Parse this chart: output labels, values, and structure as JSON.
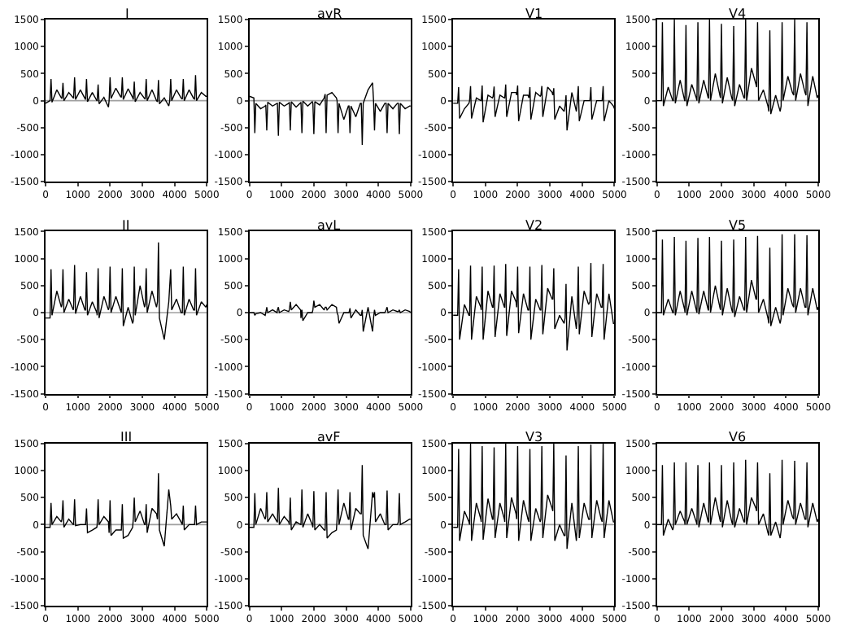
{
  "chart_data": [
    {
      "type": "line",
      "title": "I",
      "color": "#000000",
      "xlim": [
        0,
        5000
      ],
      "xticks": [
        0,
        1000,
        2000,
        3000,
        4000,
        5000
      ],
      "ylim": [
        -1500,
        1500
      ],
      "yticks": [
        -1500,
        -1000,
        -500,
        0,
        500,
        1000,
        1500
      ],
      "grid": false,
      "legend": false,
      "ref_lines": [
        {
          "axis": "y",
          "value": 0,
          "color": "#a0a0a0"
        }
      ],
      "x": [
        0,
        140,
        170,
        200,
        350,
        490,
        510,
        540,
        570,
        720,
        860,
        870,
        900,
        930,
        1080,
        1220,
        1240,
        1270,
        1300,
        1450,
        1590,
        1600,
        1630,
        1660,
        1810,
        1950,
        1970,
        2000,
        2030,
        2180,
        2320,
        2350,
        2380,
        2410,
        2560,
        2700,
        2720,
        2750,
        2780,
        2930,
        3070,
        3090,
        3120,
        3150,
        3300,
        3440,
        3470,
        3500,
        3530,
        3680,
        3820,
        3850,
        3880,
        3910,
        4060,
        4200,
        4240,
        4270,
        4300,
        4450,
        4590,
        4620,
        4650,
        4680,
        4830,
        4970,
        5000
      ],
      "values": [
        -50,
        0,
        400,
        -30,
        200,
        50,
        40,
        330,
        0,
        150,
        50,
        50,
        430,
        20,
        200,
        40,
        20,
        400,
        -20,
        150,
        0,
        0,
        300,
        -60,
        60,
        -120,
        0,
        430,
        40,
        230,
        80,
        60,
        430,
        20,
        220,
        60,
        20,
        350,
        -20,
        150,
        40,
        30,
        400,
        0,
        200,
        0,
        -20,
        380,
        -60,
        50,
        -100,
        0,
        400,
        0,
        200,
        50,
        30,
        400,
        0,
        200,
        40,
        30,
        470,
        0,
        150,
        80,
        80
      ]
    },
    {
      "type": "line",
      "title": "avR",
      "color": "#000000",
      "xlim": [
        0,
        5000
      ],
      "xticks": [
        0,
        1000,
        2000,
        3000,
        4000,
        5000
      ],
      "ylim": [
        -1500,
        1500
      ],
      "yticks": [
        -1500,
        -1000,
        -500,
        0,
        500,
        1000,
        1500
      ],
      "grid": false,
      "legend": false,
      "ref_lines": [
        {
          "axis": "y",
          "value": 0,
          "color": "#a0a0a0"
        }
      ],
      "x": [
        0,
        140,
        170,
        200,
        350,
        490,
        510,
        540,
        570,
        720,
        860,
        870,
        900,
        930,
        1080,
        1220,
        1240,
        1270,
        1300,
        1450,
        1590,
        1600,
        1630,
        1660,
        1810,
        1950,
        1970,
        2000,
        2030,
        2180,
        2320,
        2350,
        2380,
        2410,
        2560,
        2700,
        2720,
        2750,
        2780,
        2930,
        3070,
        3090,
        3120,
        3150,
        3300,
        3440,
        3470,
        3500,
        3530,
        3680,
        3820,
        3850,
        3880,
        3910,
        4060,
        4200,
        4240,
        4270,
        4300,
        4450,
        4590,
        4620,
        4650,
        4680,
        4830,
        4970,
        5000
      ],
      "values": [
        80,
        50,
        -600,
        -50,
        -150,
        -100,
        -80,
        -550,
        -30,
        -100,
        -50,
        -50,
        -650,
        -30,
        -100,
        -50,
        -30,
        -550,
        -20,
        -120,
        -40,
        -30,
        -600,
        -10,
        -100,
        -20,
        -50,
        -620,
        -20,
        -80,
        50,
        120,
        -600,
        100,
        150,
        50,
        0,
        -600,
        -50,
        -350,
        -100,
        -100,
        -600,
        -100,
        -300,
        -50,
        -50,
        -820,
        -50,
        200,
        330,
        0,
        -550,
        -50,
        -200,
        -50,
        -50,
        -600,
        -50,
        -150,
        -50,
        -50,
        -620,
        -50,
        -150,
        -100,
        -100
      ]
    },
    {
      "type": "line",
      "title": "V1",
      "color": "#000000",
      "xlim": [
        0,
        5000
      ],
      "xticks": [
        0,
        1000,
        2000,
        3000,
        4000,
        5000
      ],
      "ylim": [
        -1500,
        1500
      ],
      "yticks": [
        -1500,
        -1000,
        -500,
        0,
        500,
        1000,
        1500
      ],
      "grid": false,
      "legend": false,
      "ref_lines": [
        {
          "axis": "y",
          "value": 0,
          "color": "#a0a0a0"
        }
      ],
      "x": [
        0,
        140,
        170,
        200,
        350,
        490,
        510,
        540,
        570,
        720,
        860,
        870,
        900,
        930,
        1080,
        1220,
        1240,
        1270,
        1300,
        1450,
        1590,
        1600,
        1630,
        1660,
        1810,
        1950,
        1970,
        2000,
        2030,
        2180,
        2320,
        2350,
        2380,
        2410,
        2560,
        2700,
        2720,
        2750,
        2780,
        2930,
        3070,
        3090,
        3120,
        3150,
        3300,
        3440,
        3470,
        3500,
        3530,
        3680,
        3820,
        3850,
        3880,
        3910,
        4060,
        4200,
        4240,
        4270,
        4300,
        4450,
        4590,
        4620,
        4650,
        4680,
        4830,
        4970,
        5000
      ],
      "values": [
        -50,
        -50,
        250,
        -330,
        -150,
        -50,
        0,
        270,
        -330,
        50,
        0,
        0,
        280,
        -400,
        100,
        50,
        80,
        260,
        -300,
        100,
        50,
        50,
        300,
        -300,
        150,
        150,
        100,
        280,
        -380,
        100,
        100,
        50,
        250,
        -350,
        150,
        80,
        100,
        270,
        -300,
        250,
        150,
        100,
        230,
        -350,
        -100,
        -200,
        -100,
        100,
        -550,
        150,
        -200,
        0,
        270,
        -380,
        0,
        0,
        0,
        250,
        -350,
        0,
        0,
        0,
        270,
        -380,
        0,
        -100,
        -150
      ]
    },
    {
      "type": "line",
      "title": "V4",
      "color": "#000000",
      "xlim": [
        0,
        5000
      ],
      "xticks": [
        0,
        1000,
        2000,
        3000,
        4000,
        5000
      ],
      "ylim": [
        -1500,
        1500
      ],
      "yticks": [
        -1500,
        -1000,
        -500,
        0,
        500,
        1000,
        1500
      ],
      "grid": false,
      "legend": false,
      "ref_lines": [
        {
          "axis": "y",
          "value": 0,
          "color": "#a0a0a0"
        }
      ],
      "x": [
        0,
        140,
        170,
        200,
        350,
        490,
        510,
        540,
        570,
        720,
        860,
        870,
        900,
        930,
        1080,
        1220,
        1240,
        1270,
        1300,
        1450,
        1590,
        1600,
        1630,
        1660,
        1810,
        1950,
        1970,
        2000,
        2030,
        2180,
        2320,
        2350,
        2380,
        2410,
        2560,
        2700,
        2720,
        2750,
        2780,
        2930,
        3070,
        3090,
        3120,
        3150,
        3300,
        3440,
        3470,
        3500,
        3530,
        3680,
        3820,
        3850,
        3880,
        3910,
        4060,
        4200,
        4240,
        4270,
        4300,
        4450,
        4590,
        4620,
        4650,
        4680,
        4830,
        4970,
        5000
      ],
      "values": [
        0,
        0,
        1450,
        -100,
        250,
        0,
        0,
        1500,
        -50,
        380,
        0,
        0,
        1400,
        -100,
        300,
        50,
        0,
        1450,
        -50,
        380,
        50,
        50,
        1500,
        0,
        500,
        100,
        50,
        1420,
        -50,
        430,
        50,
        0,
        1380,
        -100,
        300,
        50,
        50,
        1500,
        0,
        600,
        300,
        250,
        1450,
        0,
        200,
        -100,
        -200,
        1300,
        -250,
        100,
        -200,
        -100,
        1450,
        0,
        450,
        150,
        100,
        1500,
        0,
        500,
        150,
        100,
        1450,
        -100,
        450,
        50,
        100
      ]
    },
    {
      "type": "line",
      "title": "II",
      "color": "#000000",
      "xlim": [
        0,
        5000
      ],
      "xticks": [
        0,
        1000,
        2000,
        3000,
        4000,
        5000
      ],
      "ylim": [
        -1500,
        1500
      ],
      "yticks": [
        -1500,
        -1000,
        -500,
        0,
        500,
        1000,
        1500
      ],
      "grid": false,
      "legend": false,
      "ref_lines": [
        {
          "axis": "y",
          "value": 0,
          "color": "#a0a0a0"
        }
      ],
      "x": [
        0,
        140,
        170,
        200,
        350,
        490,
        510,
        540,
        570,
        720,
        860,
        870,
        900,
        930,
        1080,
        1220,
        1240,
        1270,
        1300,
        1450,
        1590,
        1600,
        1630,
        1660,
        1810,
        1950,
        1970,
        2000,
        2030,
        2180,
        2320,
        2350,
        2380,
        2410,
        2560,
        2700,
        2720,
        2750,
        2780,
        2930,
        3070,
        3090,
        3120,
        3150,
        3300,
        3440,
        3470,
        3500,
        3530,
        3680,
        3820,
        3850,
        3880,
        3910,
        4060,
        4200,
        4240,
        4270,
        4300,
        4450,
        4590,
        4620,
        4650,
        4680,
        4830,
        4970,
        5000
      ],
      "values": [
        -100,
        -100,
        800,
        -50,
        400,
        100,
        150,
        800,
        0,
        250,
        50,
        100,
        880,
        -20,
        300,
        50,
        50,
        750,
        -50,
        200,
        0,
        -50,
        820,
        -100,
        300,
        50,
        100,
        850,
        0,
        300,
        50,
        0,
        820,
        -250,
        100,
        -200,
        -150,
        850,
        -50,
        500,
        100,
        150,
        820,
        0,
        400,
        100,
        200,
        1300,
        -100,
        -500,
        200,
        500,
        800,
        50,
        250,
        0,
        0,
        850,
        -50,
        250,
        50,
        50,
        820,
        -50,
        200,
        100,
        150
      ]
    },
    {
      "type": "line",
      "title": "avL",
      "color": "#000000",
      "xlim": [
        0,
        5000
      ],
      "xticks": [
        0,
        1000,
        2000,
        3000,
        4000,
        5000
      ],
      "ylim": [
        -1500,
        1500
      ],
      "yticks": [
        -1500,
        -1000,
        -500,
        0,
        500,
        1000,
        1500
      ],
      "grid": false,
      "legend": false,
      "ref_lines": [
        {
          "axis": "y",
          "value": 0,
          "color": "#a0a0a0"
        }
      ],
      "x": [
        0,
        140,
        170,
        200,
        350,
        490,
        510,
        540,
        570,
        720,
        860,
        870,
        900,
        930,
        1080,
        1220,
        1240,
        1270,
        1300,
        1450,
        1590,
        1600,
        1630,
        1660,
        1810,
        1950,
        1970,
        2000,
        2030,
        2180,
        2320,
        2350,
        2380,
        2410,
        2560,
        2700,
        2720,
        2750,
        2780,
        2930,
        3070,
        3090,
        3120,
        3150,
        3300,
        3440,
        3470,
        3500,
        3530,
        3680,
        3820,
        3850,
        3880,
        3910,
        4060,
        4200,
        4240,
        4270,
        4300,
        4450,
        4590,
        4620,
        4650,
        4680,
        4830,
        4970,
        5000
      ],
      "values": [
        0,
        0,
        -50,
        -20,
        0,
        -50,
        0,
        100,
        0,
        50,
        0,
        50,
        100,
        0,
        50,
        20,
        50,
        200,
        50,
        150,
        50,
        -100,
        50,
        -150,
        0,
        0,
        50,
        220,
        100,
        150,
        50,
        100,
        100,
        50,
        150,
        100,
        0,
        -50,
        -200,
        0,
        0,
        0,
        80,
        -100,
        50,
        -50,
        -50,
        50,
        -350,
        100,
        -350,
        -100,
        50,
        -50,
        0,
        0,
        50,
        100,
        0,
        50,
        20,
        20,
        50,
        0,
        50,
        20,
        0
      ]
    },
    {
      "type": "line",
      "title": "V2",
      "color": "#000000",
      "xlim": [
        0,
        5000
      ],
      "xticks": [
        0,
        1000,
        2000,
        3000,
        4000,
        5000
      ],
      "ylim": [
        -1500,
        1500
      ],
      "yticks": [
        -1500,
        -1000,
        -500,
        0,
        500,
        1000,
        1500
      ],
      "grid": false,
      "legend": false,
      "ref_lines": [
        {
          "axis": "y",
          "value": 0,
          "color": "#a0a0a0"
        }
      ],
      "x": [
        0,
        140,
        170,
        200,
        350,
        490,
        510,
        540,
        570,
        720,
        860,
        870,
        900,
        930,
        1080,
        1220,
        1240,
        1270,
        1300,
        1450,
        1590,
        1600,
        1630,
        1660,
        1810,
        1950,
        1970,
        2000,
        2030,
        2180,
        2320,
        2350,
        2380,
        2410,
        2560,
        2700,
        2720,
        2750,
        2780,
        2930,
        3070,
        3090,
        3120,
        3150,
        3300,
        3440,
        3470,
        3500,
        3530,
        3680,
        3820,
        3850,
        3880,
        3910,
        4060,
        4200,
        4240,
        4270,
        4300,
        4450,
        4590,
        4620,
        4650,
        4680,
        4830,
        4970,
        5000
      ],
      "values": [
        -50,
        -50,
        800,
        -500,
        150,
        -50,
        -50,
        870,
        -500,
        300,
        100,
        50,
        850,
        -500,
        400,
        100,
        100,
        870,
        -450,
        350,
        100,
        100,
        900,
        -430,
        400,
        200,
        100,
        850,
        -380,
        350,
        50,
        50,
        850,
        -500,
        250,
        50,
        50,
        880,
        -400,
        450,
        250,
        250,
        820,
        -300,
        -50,
        -200,
        -100,
        530,
        -700,
        300,
        -300,
        0,
        850,
        -400,
        400,
        150,
        200,
        920,
        -450,
        350,
        100,
        100,
        900,
        -500,
        350,
        -200,
        -200
      ]
    },
    {
      "type": "line",
      "title": "V5",
      "color": "#000000",
      "xlim": [
        0,
        5000
      ],
      "xticks": [
        0,
        1000,
        2000,
        3000,
        4000,
        5000
      ],
      "ylim": [
        -1500,
        1500
      ],
      "yticks": [
        -1500,
        -1000,
        -500,
        0,
        500,
        1000,
        1500
      ],
      "grid": false,
      "legend": false,
      "ref_lines": [
        {
          "axis": "y",
          "value": 0,
          "color": "#a0a0a0"
        }
      ],
      "x": [
        0,
        140,
        170,
        200,
        350,
        490,
        510,
        540,
        570,
        720,
        860,
        870,
        900,
        930,
        1080,
        1220,
        1240,
        1270,
        1300,
        1450,
        1590,
        1600,
        1630,
        1660,
        1810,
        1950,
        1970,
        2000,
        2030,
        2180,
        2320,
        2350,
        2380,
        2410,
        2560,
        2700,
        2720,
        2750,
        2780,
        2930,
        3070,
        3090,
        3120,
        3150,
        3300,
        3440,
        3470,
        3500,
        3530,
        3680,
        3820,
        3850,
        3880,
        3910,
        4060,
        4200,
        4240,
        4270,
        4300,
        4450,
        4590,
        4620,
        4650,
        4680,
        4830,
        4970,
        5000
      ],
      "values": [
        0,
        0,
        1350,
        -50,
        250,
        0,
        0,
        1400,
        -50,
        400,
        50,
        0,
        1330,
        -50,
        400,
        50,
        0,
        1380,
        -30,
        400,
        50,
        50,
        1400,
        0,
        500,
        100,
        50,
        1330,
        -50,
        450,
        50,
        0,
        1350,
        -80,
        300,
        50,
        50,
        1400,
        0,
        600,
        250,
        250,
        1420,
        0,
        250,
        -100,
        -200,
        1200,
        -250,
        100,
        -200,
        -100,
        1450,
        -50,
        450,
        150,
        100,
        1450,
        0,
        450,
        100,
        100,
        1430,
        -50,
        450,
        50,
        100
      ]
    },
    {
      "type": "line",
      "title": "III",
      "color": "#000000",
      "xlim": [
        0,
        5000
      ],
      "xticks": [
        0,
        1000,
        2000,
        3000,
        4000,
        5000
      ],
      "ylim": [
        -1500,
        1500
      ],
      "yticks": [
        -1500,
        -1000,
        -500,
        0,
        500,
        1000,
        1500
      ],
      "grid": false,
      "legend": false,
      "ref_lines": [
        {
          "axis": "y",
          "value": 0,
          "color": "#a0a0a0"
        }
      ],
      "x": [
        0,
        140,
        170,
        200,
        350,
        490,
        510,
        540,
        570,
        720,
        860,
        870,
        900,
        930,
        1080,
        1220,
        1240,
        1270,
        1300,
        1450,
        1590,
        1600,
        1630,
        1660,
        1810,
        1950,
        1970,
        2000,
        2030,
        2180,
        2320,
        2350,
        2380,
        2410,
        2560,
        2700,
        2720,
        2750,
        2780,
        2930,
        3070,
        3090,
        3120,
        3150,
        3300,
        3440,
        3470,
        3500,
        3530,
        3680,
        3820,
        3850,
        3880,
        3910,
        4060,
        4200,
        4240,
        4270,
        4300,
        4450,
        4590,
        4620,
        4650,
        4680,
        4830,
        4970,
        5000
      ],
      "values": [
        -50,
        -50,
        400,
        0,
        150,
        50,
        100,
        450,
        -50,
        100,
        0,
        0,
        470,
        -20,
        0,
        0,
        0,
        300,
        -150,
        -100,
        -50,
        0,
        470,
        0,
        150,
        50,
        -150,
        450,
        -200,
        -100,
        -100,
        -100,
        380,
        -250,
        -200,
        -50,
        100,
        500,
        50,
        250,
        0,
        0,
        380,
        -150,
        300,
        200,
        100,
        950,
        -100,
        -400,
        650,
        500,
        350,
        100,
        200,
        50,
        0,
        350,
        -100,
        0,
        0,
        0,
        350,
        0,
        50,
        50,
        50
      ]
    },
    {
      "type": "line",
      "title": "avF",
      "color": "#000000",
      "xlim": [
        0,
        5000
      ],
      "xticks": [
        0,
        1000,
        2000,
        3000,
        4000,
        5000
      ],
      "ylim": [
        -1500,
        1500
      ],
      "yticks": [
        -1500,
        -1000,
        -500,
        0,
        500,
        1000,
        1500
      ],
      "grid": false,
      "legend": false,
      "ref_lines": [
        {
          "axis": "y",
          "value": 0,
          "color": "#a0a0a0"
        }
      ],
      "x": [
        0,
        140,
        170,
        200,
        350,
        490,
        510,
        540,
        570,
        720,
        860,
        870,
        900,
        930,
        1080,
        1220,
        1240,
        1270,
        1300,
        1450,
        1590,
        1600,
        1630,
        1660,
        1810,
        1950,
        1970,
        2000,
        2030,
        2180,
        2320,
        2350,
        2380,
        2410,
        2560,
        2700,
        2720,
        2750,
        2780,
        2930,
        3070,
        3090,
        3120,
        3150,
        3300,
        3440,
        3470,
        3500,
        3530,
        3680,
        3820,
        3850,
        3880,
        3910,
        4060,
        4200,
        4240,
        4270,
        4300,
        4450,
        4590,
        4620,
        4650,
        4680,
        4830,
        4970,
        5000
      ],
      "values": [
        -50,
        -50,
        580,
        0,
        300,
        100,
        150,
        600,
        50,
        200,
        50,
        50,
        680,
        0,
        150,
        50,
        0,
        500,
        -100,
        50,
        0,
        0,
        650,
        -50,
        200,
        0,
        -50,
        620,
        -100,
        0,
        -100,
        -100,
        600,
        -250,
        -150,
        -100,
        100,
        650,
        0,
        400,
        100,
        100,
        600,
        -100,
        300,
        200,
        200,
        1100,
        -200,
        -450,
        600,
        500,
        600,
        50,
        200,
        0,
        0,
        630,
        -100,
        0,
        0,
        50,
        580,
        0,
        50,
        100,
        100
      ]
    },
    {
      "type": "line",
      "title": "V3",
      "color": "#000000",
      "xlim": [
        0,
        5000
      ],
      "xticks": [
        0,
        1000,
        2000,
        3000,
        4000,
        5000
      ],
      "ylim": [
        -1500,
        1500
      ],
      "yticks": [
        -1500,
        -1000,
        -500,
        0,
        500,
        1000,
        1500
      ],
      "grid": false,
      "legend": false,
      "ref_lines": [
        {
          "axis": "y",
          "value": 0,
          "color": "#a0a0a0"
        }
      ],
      "x": [
        0,
        140,
        170,
        200,
        350,
        490,
        510,
        540,
        570,
        720,
        860,
        870,
        900,
        930,
        1080,
        1220,
        1240,
        1270,
        1300,
        1450,
        1590,
        1600,
        1630,
        1660,
        1810,
        1950,
        1970,
        2000,
        2030,
        2180,
        2320,
        2350,
        2380,
        2410,
        2560,
        2700,
        2720,
        2750,
        2780,
        2930,
        3070,
        3090,
        3120,
        3150,
        3300,
        3440,
        3470,
        3500,
        3530,
        3680,
        3820,
        3850,
        3880,
        3910,
        4060,
        4200,
        4240,
        4270,
        4300,
        4450,
        4590,
        4620,
        4650,
        4680,
        4830,
        4970,
        5000
      ],
      "values": [
        -50,
        -50,
        1400,
        -300,
        250,
        50,
        0,
        1500,
        -300,
        400,
        100,
        50,
        1450,
        -280,
        480,
        100,
        100,
        1430,
        -250,
        400,
        100,
        50,
        1500,
        -250,
        500,
        200,
        100,
        1450,
        -300,
        450,
        100,
        50,
        1400,
        -300,
        300,
        50,
        100,
        1450,
        -250,
        550,
        300,
        250,
        1500,
        -300,
        0,
        -200,
        -200,
        1280,
        -450,
        400,
        -300,
        50,
        1450,
        -250,
        400,
        100,
        100,
        1480,
        -250,
        450,
        100,
        50,
        1500,
        -250,
        450,
        50,
        50
      ]
    },
    {
      "type": "line",
      "title": "V6",
      "color": "#000000",
      "xlim": [
        0,
        5000
      ],
      "xticks": [
        0,
        1000,
        2000,
        3000,
        4000,
        5000
      ],
      "ylim": [
        -1500,
        1500
      ],
      "yticks": [
        -1500,
        -1000,
        -500,
        0,
        500,
        1000,
        1500
      ],
      "grid": false,
      "legend": false,
      "ref_lines": [
        {
          "axis": "y",
          "value": 0,
          "color": "#a0a0a0"
        }
      ],
      "x": [
        0,
        140,
        170,
        200,
        350,
        490,
        510,
        540,
        570,
        720,
        860,
        870,
        900,
        930,
        1080,
        1220,
        1240,
        1270,
        1300,
        1450,
        1590,
        1600,
        1630,
        1660,
        1810,
        1950,
        1970,
        2000,
        2030,
        2180,
        2320,
        2350,
        2380,
        2410,
        2560,
        2700,
        2720,
        2750,
        2780,
        2930,
        3070,
        3090,
        3120,
        3150,
        3300,
        3440,
        3470,
        3500,
        3530,
        3680,
        3820,
        3850,
        3880,
        3910,
        4060,
        4200,
        4240,
        4270,
        4300,
        4450,
        4590,
        4620,
        4650,
        4680,
        4830,
        4970,
        5000
      ],
      "values": [
        0,
        0,
        1100,
        -200,
        100,
        -100,
        -50,
        1150,
        0,
        250,
        50,
        0,
        1150,
        0,
        300,
        50,
        0,
        1100,
        -50,
        400,
        50,
        50,
        1150,
        0,
        500,
        100,
        50,
        1100,
        -50,
        450,
        50,
        0,
        1150,
        -50,
        300,
        50,
        50,
        1200,
        0,
        500,
        300,
        250,
        1150,
        0,
        200,
        -150,
        -200,
        950,
        -200,
        50,
        -250,
        -100,
        1200,
        0,
        450,
        150,
        100,
        1180,
        0,
        400,
        100,
        100,
        1150,
        -50,
        400,
        50,
        100
      ]
    }
  ]
}
